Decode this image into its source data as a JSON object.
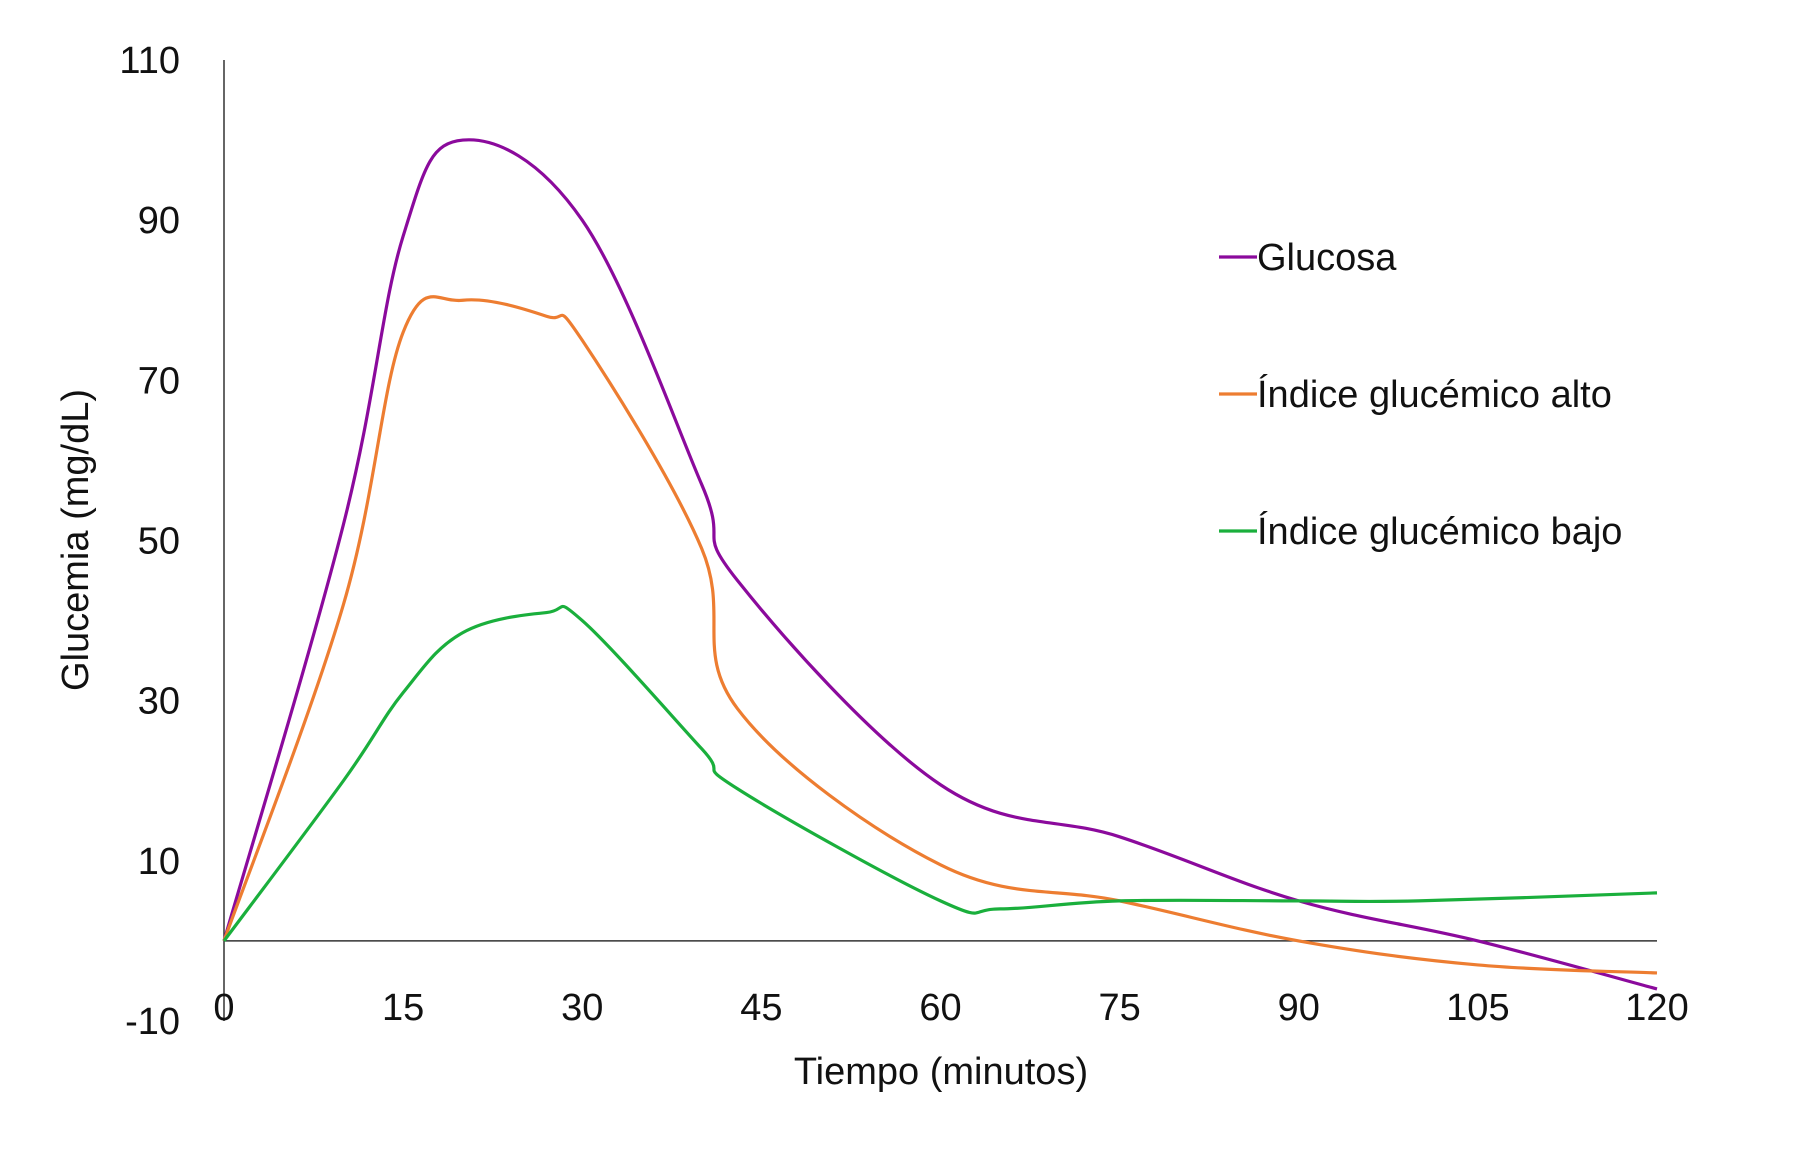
{
  "chart_data": {
    "type": "line",
    "title": "",
    "xlabel": "Tiempo (minutos)",
    "ylabel": "Glucemia (mg/dL)",
    "xlim": [
      0,
      120
    ],
    "ylim": [
      -10,
      110
    ],
    "x_ticks": [
      "0",
      "15",
      "30",
      "45",
      "60",
      "75",
      "90",
      "105",
      "120"
    ],
    "y_ticks": [
      "110",
      "90",
      "70",
      "50",
      "30",
      "10",
      "-10"
    ],
    "grid": false,
    "legend_placement": "right",
    "series": [
      {
        "name": "Glucosa",
        "color": "#8B0A9C",
        "x": [
          0,
          10,
          15,
          20,
          30,
          40,
          43,
          60,
          75,
          90,
          105,
          120
        ],
        "y": [
          0,
          52,
          88,
          100,
          90,
          57,
          45,
          19.5,
          13,
          5,
          0,
          -6
        ]
      },
      {
        "name": "Índice glucémico alto",
        "color": "#ED7D31",
        "x": [
          0,
          10,
          15,
          20,
          27,
          30,
          40,
          43,
          60,
          75,
          90,
          105,
          120
        ],
        "y": [
          0,
          42,
          76,
          80,
          78,
          75,
          49,
          29,
          9.5,
          5,
          0,
          -3,
          -4
        ]
      },
      {
        "name": "Índice glucémico bajo",
        "color": "#1AAF3C",
        "x": [
          0,
          10,
          15,
          20,
          27,
          30,
          40,
          43,
          60,
          65,
          75,
          90,
          100,
          120
        ],
        "y": [
          0,
          20,
          31,
          38.5,
          41,
          40,
          24,
          19,
          5,
          4,
          5,
          5,
          5,
          6
        ]
      }
    ]
  }
}
